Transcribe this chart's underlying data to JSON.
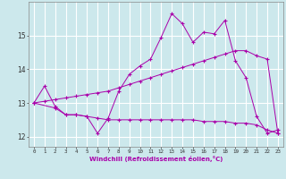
{
  "xlabel": "Windchill (Refroidissement éolien,°C)",
  "background_color": "#cce8ec",
  "grid_color": "#ffffff",
  "line_color": "#aa00aa",
  "x_ticks": [
    0,
    1,
    2,
    3,
    4,
    5,
    6,
    7,
    8,
    9,
    10,
    11,
    12,
    13,
    14,
    15,
    16,
    17,
    18,
    19,
    20,
    21,
    22,
    23
  ],
  "ylim": [
    11.7,
    16.0
  ],
  "xlim": [
    -0.5,
    23.5
  ],
  "yticks": [
    12,
    13,
    14,
    15
  ],
  "line1_x": [
    0,
    1,
    2,
    3,
    4,
    5,
    6,
    7,
    8,
    9,
    10,
    11,
    12,
    13,
    14,
    15,
    16,
    17,
    18,
    19,
    20,
    21,
    22,
    23
  ],
  "line1_y": [
    13.0,
    13.5,
    12.9,
    12.65,
    12.65,
    12.6,
    12.1,
    12.55,
    13.35,
    13.85,
    14.1,
    14.3,
    14.95,
    15.65,
    15.35,
    14.8,
    15.1,
    15.05,
    15.45,
    14.25,
    13.75,
    12.6,
    12.1,
    12.2
  ],
  "line2_x": [
    0,
    1,
    2,
    3,
    4,
    5,
    6,
    7,
    8,
    9,
    10,
    11,
    12,
    13,
    14,
    15,
    16,
    17,
    18,
    19,
    20,
    21,
    22,
    23
  ],
  "line2_y": [
    13.0,
    13.05,
    13.1,
    13.15,
    13.2,
    13.25,
    13.3,
    13.35,
    13.45,
    13.55,
    13.65,
    13.75,
    13.85,
    13.95,
    14.05,
    14.15,
    14.25,
    14.35,
    14.45,
    14.55,
    14.55,
    14.4,
    14.3,
    12.1
  ],
  "line3_x": [
    0,
    2,
    3,
    4,
    5,
    6,
    7,
    8,
    9,
    10,
    11,
    12,
    13,
    14,
    15,
    16,
    17,
    18,
    19,
    20,
    21,
    22,
    23
  ],
  "line3_y": [
    13.0,
    12.85,
    12.65,
    12.65,
    12.6,
    12.55,
    12.5,
    12.5,
    12.5,
    12.5,
    12.5,
    12.5,
    12.5,
    12.5,
    12.5,
    12.45,
    12.45,
    12.45,
    12.4,
    12.4,
    12.35,
    12.2,
    12.1
  ]
}
